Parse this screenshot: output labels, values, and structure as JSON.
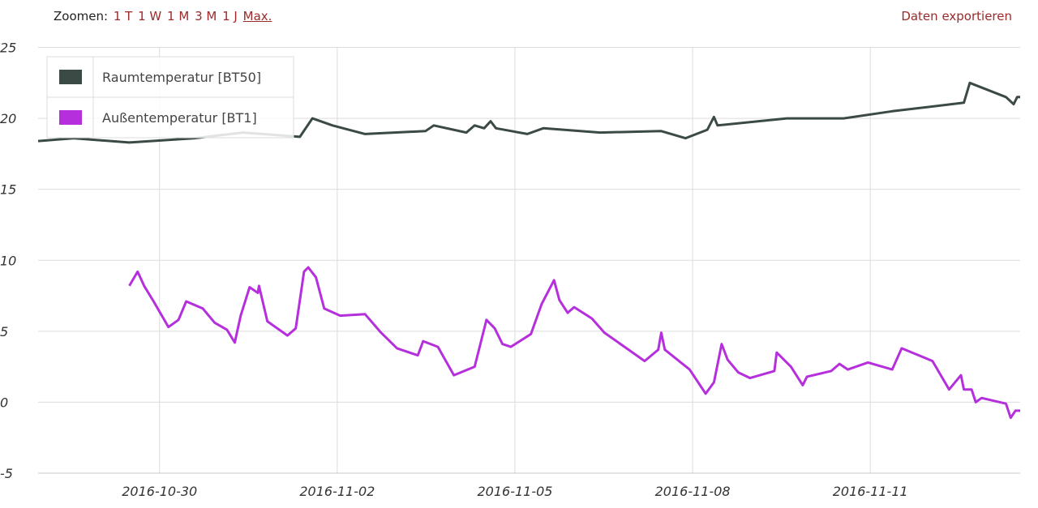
{
  "toolbar": {
    "zoom_label": "Zoomen:",
    "zoom_options": [
      "1 T",
      "1 W",
      "1 M",
      "3 M",
      "1 J",
      "Max."
    ],
    "selected_index": 5,
    "export": "Daten exportieren"
  },
  "chart_data": {
    "type": "line",
    "xlim": [
      17101.95,
      17118.53
    ],
    "xticks": [
      {
        "value": 17104,
        "label": "2016-10-30"
      },
      {
        "value": 17107,
        "label": "2016-11-02"
      },
      {
        "value": 17110,
        "label": "2016-11-05"
      },
      {
        "value": 17113,
        "label": "2016-11-08"
      },
      {
        "value": 17116,
        "label": "2016-11-11"
      }
    ],
    "ylim": [
      -5,
      25
    ],
    "yticks": [
      25,
      20,
      15,
      10,
      5,
      0,
      -5
    ],
    "grid": true,
    "legend": "top-left",
    "series": [
      {
        "name": "Raumtemperatur [BT50]",
        "color": "#3b4a45",
        "x": [
          17101.95,
          17102.55,
          17103.49,
          17104.59,
          17105.41,
          17106.37,
          17106.58,
          17106.92,
          17107.47,
          17108.49,
          17108.63,
          17109.18,
          17109.32,
          17109.48,
          17109.59,
          17109.68,
          17110.21,
          17110.48,
          17111.44,
          17112.47,
          17112.88,
          17113.25,
          17113.36,
          17113.42,
          17114.59,
          17115.55,
          17116.37,
          17117.58,
          17117.68,
          17118.29,
          17118.42,
          17118.48,
          17118.53
        ],
        "values": [
          18.4,
          18.6,
          18.3,
          18.6,
          19.0,
          18.7,
          20.0,
          19.5,
          18.9,
          19.1,
          19.5,
          19.0,
          19.5,
          19.3,
          19.8,
          19.3,
          18.9,
          19.3,
          19.0,
          19.1,
          18.6,
          19.2,
          20.1,
          19.5,
          20.0,
          20.0,
          20.5,
          21.1,
          22.5,
          21.5,
          21.0,
          21.5,
          21.5
        ]
      },
      {
        "name": "Außentemperatur [BT1]",
        "color": "#b52fdc",
        "x": [
          17103.49,
          17103.63,
          17103.74,
          17103.9,
          17104.15,
          17104.32,
          17104.45,
          17104.73,
          17104.93,
          17105.14,
          17105.27,
          17105.37,
          17105.52,
          17105.66,
          17105.68,
          17105.82,
          17106.16,
          17106.3,
          17106.44,
          17106.51,
          17106.64,
          17106.78,
          17107.05,
          17107.47,
          17107.74,
          17108.01,
          17108.36,
          17108.45,
          17108.7,
          17108.97,
          17109.32,
          17109.52,
          17109.66,
          17109.79,
          17109.93,
          17110.27,
          17110.45,
          17110.66,
          17110.75,
          17110.89,
          17111.0,
          17111.3,
          17111.51,
          17112.19,
          17112.42,
          17112.47,
          17112.53,
          17112.95,
          17113.22,
          17113.36,
          17113.49,
          17113.59,
          17113.77,
          17113.97,
          17114.38,
          17114.42,
          17114.66,
          17114.86,
          17114.93,
          17115.34,
          17115.48,
          17115.62,
          17115.96,
          17116.37,
          17116.53,
          17117.05,
          17117.33,
          17117.53,
          17117.58,
          17117.71,
          17117.78,
          17117.88,
          17118.29,
          17118.37,
          17118.45,
          17118.53
        ],
        "values": [
          8.2,
          9.2,
          8.2,
          7.1,
          5.3,
          5.8,
          7.1,
          6.6,
          5.6,
          5.1,
          4.2,
          6.1,
          8.1,
          7.7,
          8.2,
          5.7,
          4.7,
          5.2,
          9.2,
          9.5,
          8.8,
          6.6,
          6.1,
          6.2,
          4.9,
          3.8,
          3.3,
          4.3,
          3.9,
          1.9,
          2.5,
          5.8,
          5.2,
          4.1,
          3.9,
          4.8,
          6.9,
          8.6,
          7.2,
          6.3,
          6.7,
          5.9,
          4.9,
          2.9,
          3.7,
          4.9,
          3.7,
          2.3,
          0.6,
          1.4,
          4.1,
          3.0,
          2.1,
          1.7,
          2.2,
          3.5,
          2.5,
          1.2,
          1.8,
          2.2,
          2.7,
          2.3,
          2.8,
          2.3,
          3.8,
          2.9,
          0.9,
          1.9,
          0.9,
          0.9,
          0.0,
          0.3,
          -0.1,
          -1.1,
          -0.6,
          -0.6
        ]
      }
    ]
  }
}
